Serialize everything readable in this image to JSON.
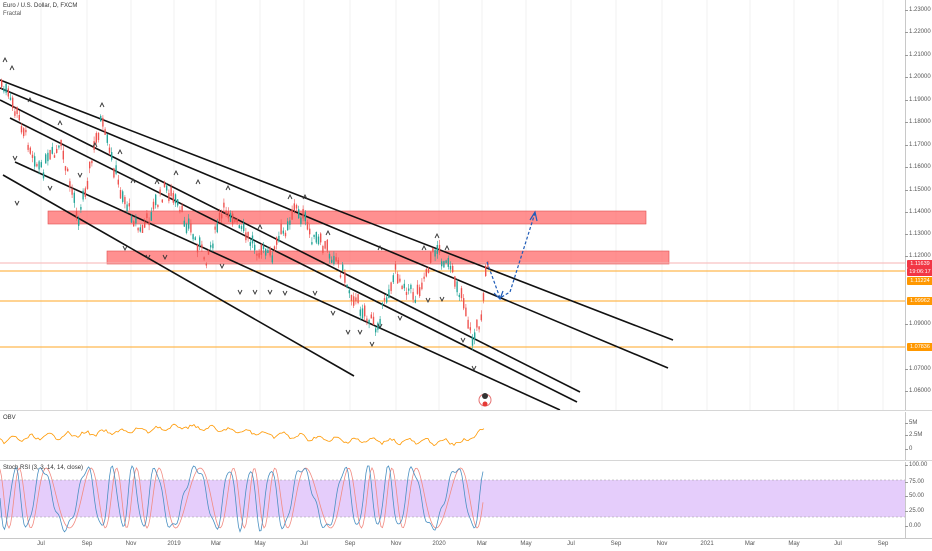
{
  "header": {
    "symbol_title": "Euro / U.S. Dollar, D, FXCM",
    "indicator_fractal": "Fractal"
  },
  "price_axis": {
    "ticks": [
      "1.23000",
      "1.22000",
      "1.21000",
      "1.20000",
      "1.19000",
      "1.18000",
      "1.17000",
      "1.16000",
      "1.15000",
      "1.14000",
      "1.13000",
      "1.12000",
      "1.09000",
      "1.07000",
      "1.06000"
    ],
    "badges": [
      {
        "text": "1.11639",
        "color": "#f23645"
      },
      {
        "text": "19:06:17",
        "color": "#f23645"
      },
      {
        "text": "1.11224",
        "color": "#ff9800"
      },
      {
        "text": "1.09962",
        "color": "#ff9800"
      },
      {
        "text": "1.07836",
        "color": "#ff9800"
      }
    ]
  },
  "obv": {
    "label": "OBV",
    "ticks": [
      "5M",
      "2.5M",
      "0"
    ]
  },
  "stoch": {
    "label": "Stoch RSI (3, 3, 14, 14, close)",
    "ticks": [
      "100.00",
      "75.00",
      "50.00",
      "25.00",
      "0.00"
    ]
  },
  "time_axis": {
    "labels": [
      "Jul",
      "Sep",
      "Nov",
      "2019",
      "Mar",
      "May",
      "Jul",
      "Sep",
      "Nov",
      "2020",
      "Mar",
      "May",
      "Jul",
      "Sep",
      "Nov",
      "2021",
      "Mar",
      "May",
      "Jul",
      "Sep"
    ]
  },
  "colors": {
    "zone_fill": "#ff6b6b",
    "level_line": "#ffa726",
    "bull_candle": "#26a69a",
    "bear_candle": "#ef5350",
    "obv_line": "#ff9800",
    "stoch_band": "#e1c4fa",
    "projection": "#1e5bb8"
  },
  "icons": [
    "up-fractal-icon",
    "down-fractal-icon",
    "event-flag-icon"
  ]
}
